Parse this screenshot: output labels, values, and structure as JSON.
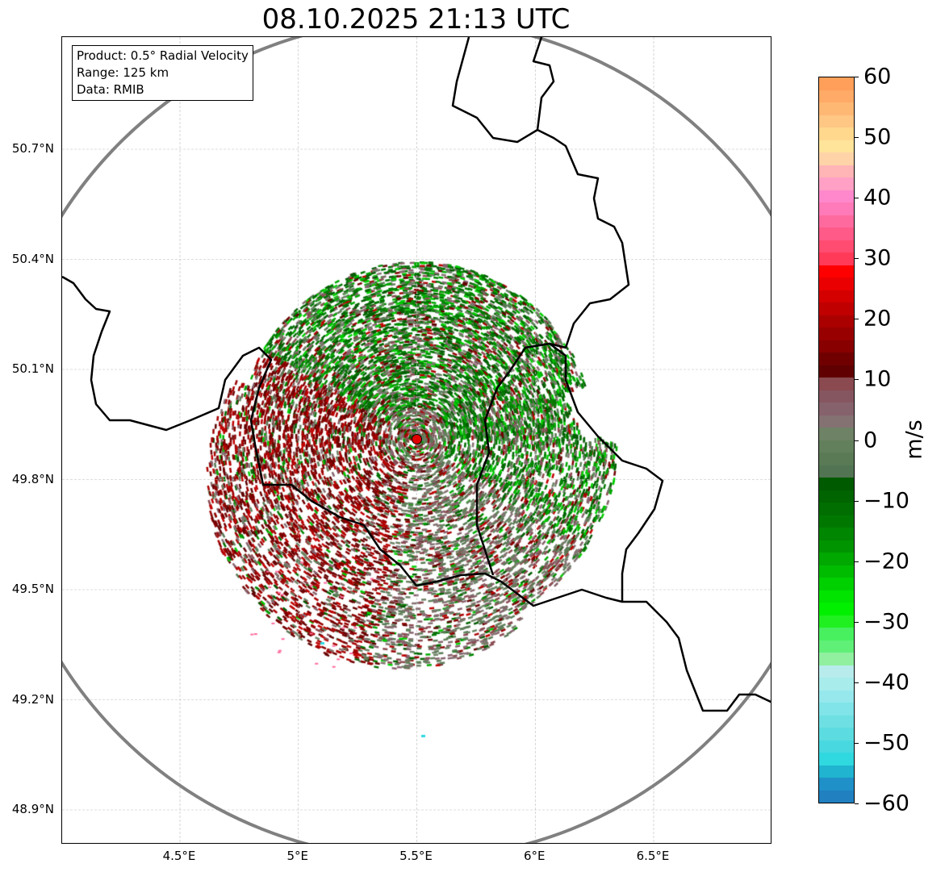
{
  "title": "08.10.2025 21:13 UTC",
  "info": {
    "product": "Product: 0.5° Radial Velocity",
    "range": "Range: 125 km",
    "data": "Data: RMIB"
  },
  "map": {
    "lon_range": [
      4.0,
      7.0
    ],
    "lat_range": [
      48.8,
      51.0
    ],
    "radar_site": {
      "lon": 5.5,
      "lat": 49.91
    },
    "x_ticks": [
      {
        "value": 4.5,
        "label": "4.5°E"
      },
      {
        "value": 5.0,
        "label": "5°E"
      },
      {
        "value": 5.5,
        "label": "5.5°E"
      },
      {
        "value": 6.0,
        "label": "6°E"
      },
      {
        "value": 6.5,
        "label": "6.5°E"
      }
    ],
    "y_ticks": [
      {
        "value": 50.7,
        "label": "50.7°N"
      },
      {
        "value": 50.4,
        "label": "50.4°N"
      },
      {
        "value": 50.1,
        "label": "50.1°N"
      },
      {
        "value": 49.8,
        "label": "49.8°N"
      },
      {
        "value": 49.5,
        "label": "49.5°N"
      },
      {
        "value": 49.2,
        "label": "49.2°N"
      },
      {
        "value": 48.9,
        "label": "48.9°N"
      }
    ]
  },
  "colorbar": {
    "label": "m/s",
    "min": -60,
    "max": 60,
    "ticks": [
      {
        "value": 60,
        "label": "60"
      },
      {
        "value": 50,
        "label": "50"
      },
      {
        "value": 40,
        "label": "40"
      },
      {
        "value": 30,
        "label": "30"
      },
      {
        "value": 20,
        "label": "20"
      },
      {
        "value": 10,
        "label": "10"
      },
      {
        "value": 0,
        "label": "0"
      },
      {
        "value": -10,
        "label": "−10"
      },
      {
        "value": -20,
        "label": "−20"
      },
      {
        "value": -30,
        "label": "−30"
      },
      {
        "value": -40,
        "label": "−40"
      },
      {
        "value": -50,
        "label": "−50"
      },
      {
        "value": -60,
        "label": "−60"
      }
    ],
    "colors_top_to_bottom": [
      "#ff9f5a",
      "#ffaa66",
      "#ffb874",
      "#ffc684",
      "#ffd88e",
      "#ffe49a",
      "#ffd3a8",
      "#ffb4b6",
      "#ffa0c4",
      "#ff88cc",
      "#ff7ab8",
      "#ff6a9e",
      "#ff5a88",
      "#ff4c70",
      "#ff3a58",
      "#ff0000",
      "#ea0000",
      "#d40000",
      "#c00000",
      "#aa0000",
      "#980000",
      "#880000",
      "#700000",
      "#600000",
      "#8a4a50",
      "#865660",
      "#86626c",
      "#847272",
      "#6e8266",
      "#62805c",
      "#5a7a56",
      "#527452",
      "#005a00",
      "#006400",
      "#006e00",
      "#007800",
      "#008600",
      "#009400",
      "#00a800",
      "#00bc00",
      "#00d000",
      "#00e400",
      "#00f000",
      "#20f020",
      "#48f060",
      "#60f078",
      "#90f0a0",
      "#b8ecec",
      "#a8ecec",
      "#96e8ec",
      "#80e4e8",
      "#6ee0e4",
      "#5cdce0",
      "#48d8e0",
      "#30d8e0",
      "#20b4d0",
      "#2090c8",
      "#2080c0"
    ]
  }
}
